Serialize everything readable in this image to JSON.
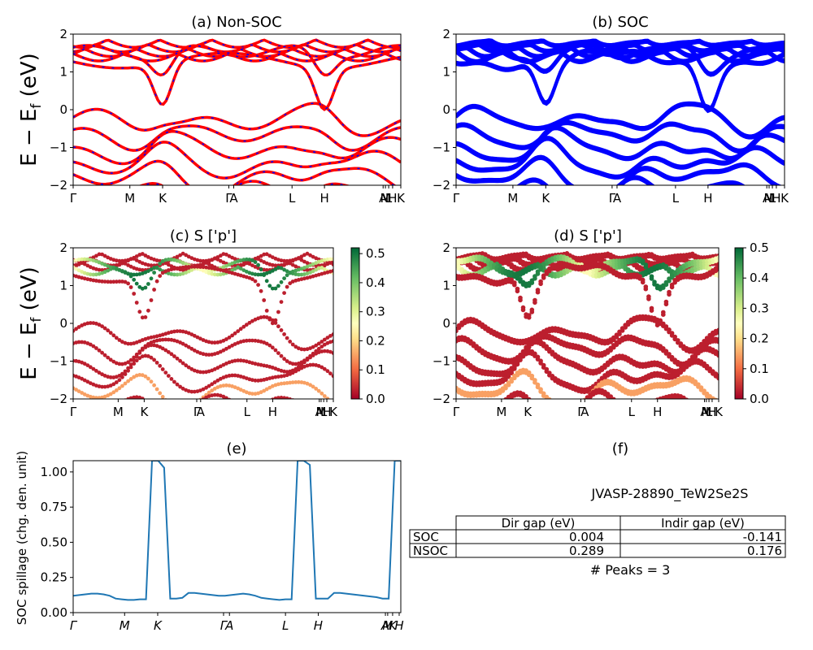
{
  "figure": {
    "panel_a_title": "(a) Non-SOC",
    "panel_b_title": "(b) SOC",
    "panel_c_title": "(c)  S ['p']",
    "panel_d_title": "(d) S ['p']",
    "panel_e_title": "(e)",
    "panel_f_title": "(f)",
    "band_ylabel": "E − E",
    "band_ylabel_sub": "f",
    "band_ylabel_unit": " (eV)",
    "spillage_ylabel": "SOC spillage (chg. den. unit)"
  },
  "band_axis": {
    "ylim": [
      -2,
      2
    ],
    "yticks": [
      "2",
      "1",
      "0",
      "−1",
      "−2"
    ],
    "xticks_top": [
      "Γ",
      "M",
      "K",
      "Γ",
      "A",
      "L",
      "H",
      "A",
      "M",
      "L",
      "H",
      "K"
    ],
    "xticks_mid": [
      "Γ",
      "M",
      "K",
      "Γ",
      "A",
      "L",
      "H",
      "A",
      "M",
      "L",
      "H",
      "K"
    ]
  },
  "colors": {
    "nonsoc_red": "#ff0000",
    "nonsoc_blue": "#0000ff",
    "soc_blue": "#0000ff",
    "spillage_line": "#1f77b4"
  },
  "colorbar_c": {
    "ticks": [
      "0.5",
      "0.4",
      "0.3",
      "0.2",
      "0.1",
      "0.0"
    ],
    "range": [
      0,
      0.52
    ],
    "colormap": "RdYlGn"
  },
  "colorbar_d": {
    "ticks": [
      "0.5",
      "0.4",
      "0.3",
      "0.2",
      "0.1",
      "0.0"
    ],
    "range": [
      0,
      0.5
    ],
    "colormap": "RdYlGn"
  },
  "chart_data": [
    {
      "type": "line",
      "panel": "e",
      "title": "(e)",
      "ylabel": "SOC spillage (chg. den. unit)",
      "ylim": [
        0,
        1.08
      ],
      "yticks": [
        "1.00",
        "0.75",
        "0.50",
        "0.25",
        "0.00"
      ],
      "xtick_labels": [
        "Γ",
        "M",
        "K",
        "Γ",
        "A",
        "L",
        "H",
        "A",
        "M",
        "K",
        "H"
      ],
      "series": [
        {
          "values": [
            0.12,
            0.125,
            0.13,
            0.135,
            0.135,
            0.13,
            0.12,
            0.1,
            0.095,
            0.09,
            0.09,
            0.095,
            0.095,
            1.08,
            1.08,
            1.03,
            0.1,
            0.1,
            0.105,
            0.14,
            0.14,
            0.135,
            0.13,
            0.125,
            0.12,
            0.12,
            0.125,
            0.13,
            0.135,
            0.13,
            0.12,
            0.105,
            0.1,
            0.095,
            0.09,
            0.095,
            0.095,
            1.08,
            1.08,
            1.05,
            0.1,
            0.1,
            0.1,
            0.14,
            0.14,
            0.135,
            0.13,
            0.125,
            0.12,
            0.115,
            0.11,
            0.1,
            0.1,
            1.08,
            1.08
          ]
        }
      ]
    },
    {
      "type": "table",
      "panel": "f",
      "title": "(f)",
      "caption": "JVASP-28890_TeW2Se2S",
      "columns": [
        "",
        "Dir gap (eV)",
        "Indir gap (eV)"
      ],
      "rows": [
        [
          "SOC",
          "0.004",
          "-0.141"
        ],
        [
          "NSOC",
          "0.289",
          "0.176"
        ]
      ],
      "footer": "# Peaks = 3"
    }
  ]
}
